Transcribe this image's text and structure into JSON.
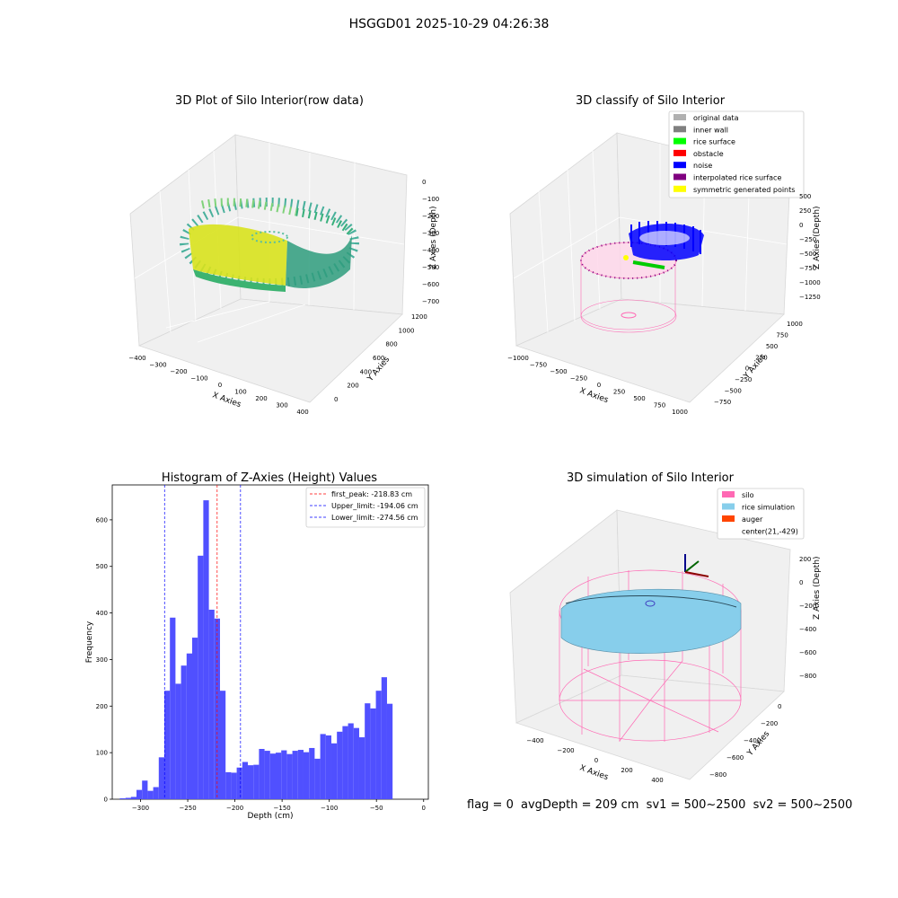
{
  "suptitle": "HSGGD01 2025-10-29 04:26:38",
  "panels": {
    "raw": {
      "title": "3D Plot of Silo Interior(row data)",
      "xlabel": "X Axies",
      "ylabel": "Y Axies",
      "zlabel": "Z Axies (Depth)",
      "xticks": [
        "−400",
        "−300",
        "−200",
        "−100",
        "0",
        "100",
        "200",
        "300",
        "400"
      ],
      "yticks": [
        "0",
        "200",
        "400",
        "600",
        "800",
        "1000",
        "1200"
      ],
      "zticks": [
        "0",
        "−100",
        "−200",
        "−300",
        "−400",
        "−500",
        "−600",
        "−700"
      ]
    },
    "classify": {
      "title": "3D classify of Silo Interior",
      "xlabel": "X Axies",
      "ylabel": "Y Axies",
      "zlabel": "Z Axies (Depth)",
      "xticks": [
        "−1000",
        "−750",
        "−500",
        "−250",
        "0",
        "250",
        "500",
        "750",
        "1000"
      ],
      "yticks": [
        "−750",
        "−500",
        "−250",
        "0",
        "250",
        "500",
        "750",
        "1000"
      ],
      "zticks": [
        "500",
        "250",
        "0",
        "−250",
        "−500",
        "−750",
        "−1000",
        "−1250"
      ],
      "legend": [
        {
          "label": "original data",
          "color": "#b0b0b0"
        },
        {
          "label": "inner wall",
          "color": "#808080"
        },
        {
          "label": "rice surface",
          "color": "#00ff00"
        },
        {
          "label": "obstacle",
          "color": "#ff0000"
        },
        {
          "label": "noise",
          "color": "#0000ff"
        },
        {
          "label": "interpolated rice surface",
          "color": "#800080"
        },
        {
          "label": "symmetric generated points",
          "color": "#ffff00"
        }
      ]
    },
    "simulation": {
      "title": "3D simulation of Silo Interior",
      "xlabel": "X Axies",
      "ylabel": "Y Axies",
      "zlabel": "Z Axies (Depth)",
      "xticks": [
        "−400",
        "−200",
        "0",
        "200",
        "400"
      ],
      "yticks": [
        "−800",
        "−600",
        "−400",
        "−200",
        "0"
      ],
      "zticks": [
        "200",
        "0",
        "−200",
        "−400",
        "−600",
        "−800"
      ],
      "legend": [
        {
          "label": "silo",
          "color": "#ff69b4"
        },
        {
          "label": "rice simulation",
          "color": "#87ceeb"
        },
        {
          "label": "auger",
          "color": "#ff4500"
        },
        {
          "label": "center(21,-429)",
          "color": ""
        }
      ]
    }
  },
  "footer": {
    "flag": "flag = 0",
    "avg": "avgDepth = 209 cm  sv1 = 500~2500  sv2 = 500~2500"
  },
  "chart_data": {
    "type": "bar",
    "title": "Histogram of Z-Axies (Height) Values",
    "xlabel": "Depth (cm)",
    "ylabel": "Frequency",
    "xlim": [
      -330,
      5
    ],
    "ylim": [
      0,
      675
    ],
    "xticks": [
      -300,
      -250,
      -200,
      -150,
      -100,
      -50,
      0
    ],
    "yticks": [
      0,
      100,
      200,
      300,
      400,
      500,
      600
    ],
    "bin_width": 5.9,
    "bins_start": [
      -322,
      -316,
      -310.2,
      -304.3,
      -298.4,
      -292.5,
      -286.6,
      -280.7,
      -274.8,
      -268.9,
      -263,
      -257.1,
      -251.2,
      -245.3,
      -239.4,
      -233.5,
      -227.6,
      -221.7,
      -215.8,
      -209.9,
      -204,
      -198.1,
      -192.2,
      -186.3,
      -180.4,
      -174.5,
      -168.6,
      -162.7,
      -156.8,
      -150.9,
      -145,
      -139.1,
      -133.2,
      -127.3,
      -121.4,
      -115.5,
      -109.6,
      -103.7,
      -97.8,
      -91.9,
      -86,
      -80.1,
      -74.2,
      -68.3,
      -62.4,
      -56.5,
      -50.6,
      -44.7,
      -38.8,
      -32.9,
      -27,
      -21.1,
      -15.2
    ],
    "values": [
      2,
      3,
      5,
      20,
      40,
      18,
      26,
      90,
      233,
      390,
      248,
      287,
      313,
      347,
      523,
      642,
      407,
      388,
      233,
      58,
      57,
      68,
      80,
      73,
      74,
      108,
      104,
      98,
      100,
      105,
      97,
      104,
      106,
      101,
      110,
      87,
      140,
      137,
      120,
      145,
      157,
      163,
      153,
      133,
      206,
      195,
      233,
      262,
      205,
      0,
      0,
      0,
      0
    ],
    "vlines": [
      {
        "x": -218.83,
        "label": "first_peak: -218.83 cm",
        "color": "#ff0000"
      },
      {
        "x": -194.06,
        "label": "Upper_limit: -194.06 cm",
        "color": "#0000ff"
      },
      {
        "x": -274.56,
        "label": "Lower_limit: -274.56 cm",
        "color": "#0000ff"
      }
    ],
    "bar_color": "#5050ff"
  }
}
